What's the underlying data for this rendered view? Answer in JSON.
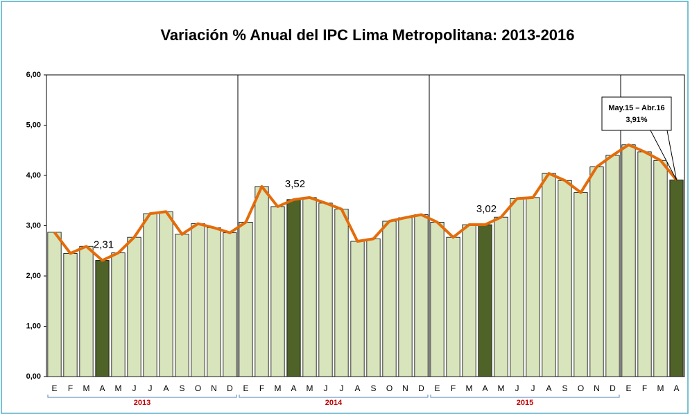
{
  "chart_data": {
    "type": "bar",
    "title": "Variación % Anual del IPC Lima Metropolitana: 2013-2016",
    "categories": [
      "E",
      "F",
      "M",
      "A",
      "M",
      "J",
      "J",
      "A",
      "S",
      "O",
      "N",
      "D",
      "E",
      "F",
      "M",
      "A",
      "M",
      "J",
      "J",
      "A",
      "S",
      "O",
      "N",
      "D",
      "E",
      "F",
      "M",
      "A",
      "M",
      "J",
      "J",
      "A",
      "S",
      "O",
      "N",
      "D",
      "E",
      "F",
      "M",
      "A"
    ],
    "groups": [
      "2013",
      "2014",
      "2015",
      null
    ],
    "values": [
      2.87,
      2.45,
      2.59,
      2.31,
      2.46,
      2.77,
      3.24,
      3.28,
      2.83,
      3.04,
      2.96,
      2.86,
      3.07,
      3.78,
      3.38,
      3.52,
      3.56,
      3.45,
      3.33,
      2.69,
      2.74,
      3.09,
      3.16,
      3.22,
      3.07,
      2.77,
      3.02,
      3.02,
      3.17,
      3.54,
      3.56,
      4.04,
      3.9,
      3.66,
      4.17,
      4.4,
      4.61,
      4.47,
      4.3,
      3.91
    ],
    "value_labels": [
      null,
      null,
      null,
      "2,31",
      null,
      null,
      null,
      null,
      null,
      null,
      null,
      null,
      null,
      null,
      null,
      "3,52",
      null,
      null,
      null,
      null,
      null,
      null,
      null,
      null,
      null,
      null,
      null,
      "3,02",
      null,
      null,
      null,
      null,
      null,
      null,
      null,
      null,
      null,
      null,
      null,
      null
    ],
    "highlighted": [
      3,
      15,
      27,
      39
    ],
    "color": "#d8e4bc",
    "highlight_color": "#4f6228",
    "line_color": "#e46c0a",
    "ylim": [
      0,
      6
    ],
    "yticks": [
      {
        "value": 0,
        "label": "0,00"
      },
      {
        "value": 1,
        "label": "1,00"
      },
      {
        "value": 2,
        "label": "2,00"
      },
      {
        "value": 3,
        "label": "3,00"
      },
      {
        "value": 4,
        "label": "4,00"
      },
      {
        "value": 5,
        "label": "5,00"
      },
      {
        "value": 6,
        "label": "6,00"
      }
    ],
    "annotation": {
      "lines": [
        "May.15  – Abr.16",
        "3,91%"
      ],
      "value": 3.91
    },
    "grid": false
  }
}
